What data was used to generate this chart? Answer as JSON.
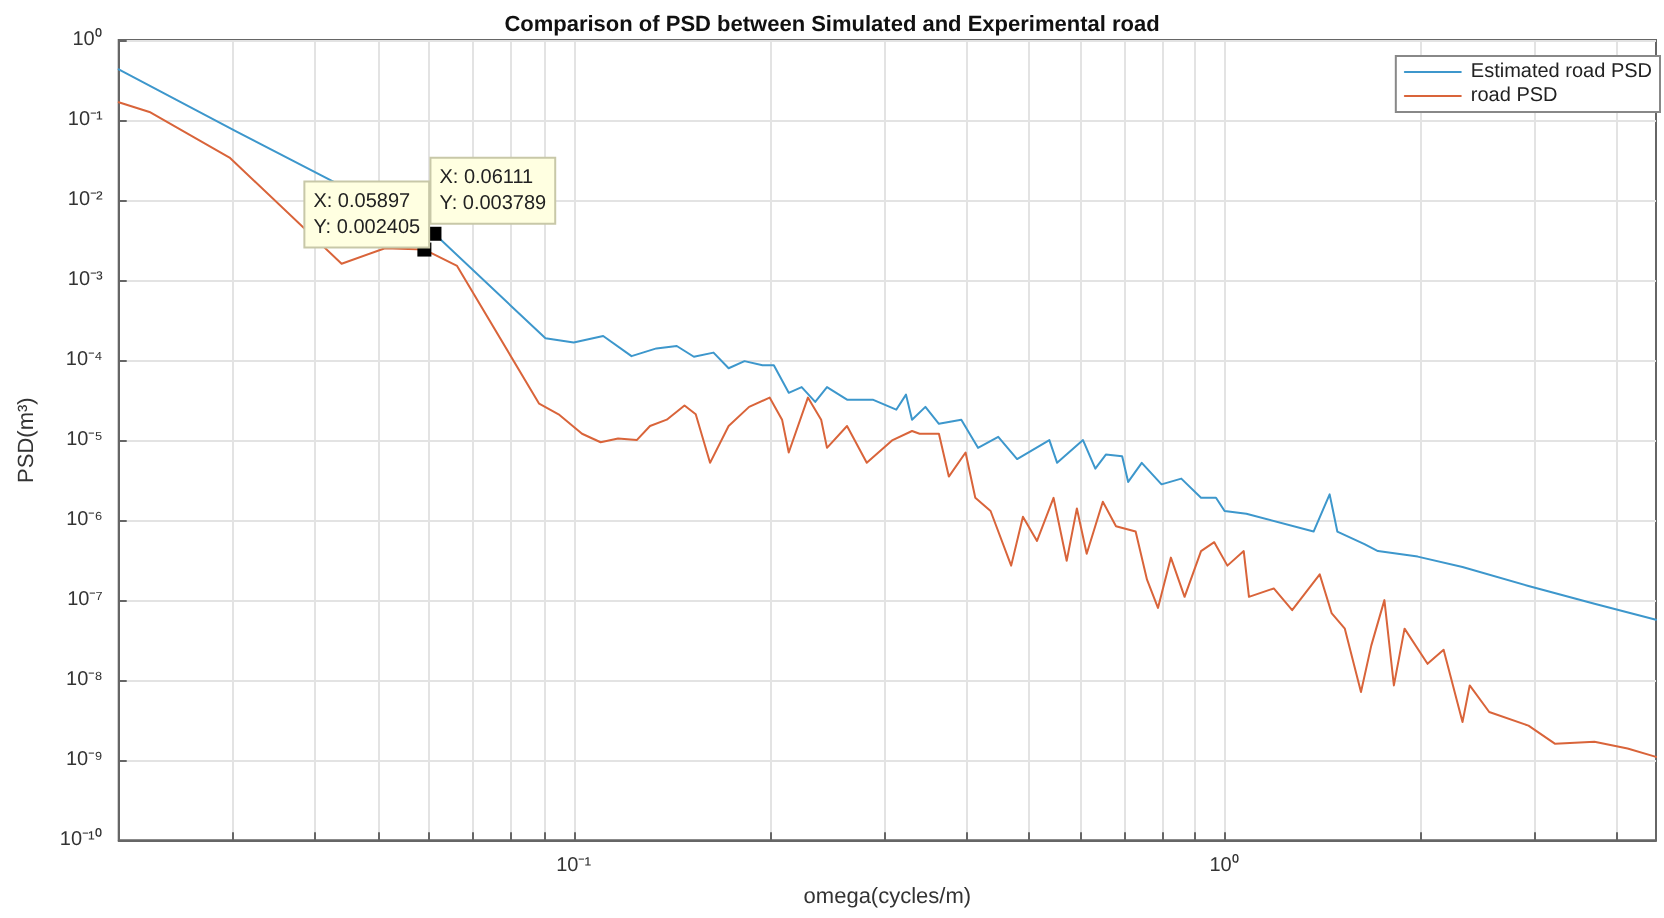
{
  "chart_data": {
    "type": "line",
    "title": "Comparison of PSD between Simulated and Experimental road",
    "xlabel": "omega(cycles/m)",
    "ylabel": "PSD(m³)",
    "log": "xy",
    "grid": true,
    "legend": "top right",
    "marker": "none",
    "line_style": "solid",
    "xlim": [
      0.02,
      4.6
    ],
    "ylim": [
      1e-10,
      1
    ],
    "xticks": [
      {
        "value": 0.02,
        "label": null
      },
      {
        "value": 0.03,
        "label": null
      },
      {
        "value": 0.04,
        "label": null
      },
      {
        "value": 0.05,
        "label": null
      },
      {
        "value": 0.06,
        "label": null
      },
      {
        "value": 0.07,
        "label": null
      },
      {
        "value": 0.08,
        "label": null
      },
      {
        "value": 0.09,
        "label": null
      },
      {
        "value": 0.1,
        "label": "10⁻¹"
      },
      {
        "value": 0.2,
        "label": null
      },
      {
        "value": 0.3,
        "label": null
      },
      {
        "value": 0.4,
        "label": null
      },
      {
        "value": 0.5,
        "label": null
      },
      {
        "value": 0.6,
        "label": null
      },
      {
        "value": 0.7,
        "label": null
      },
      {
        "value": 0.8,
        "label": null
      },
      {
        "value": 0.9,
        "label": null
      },
      {
        "value": 1,
        "label": "10⁰"
      },
      {
        "value": 2,
        "label": null
      },
      {
        "value": 3,
        "label": null
      },
      {
        "value": 4,
        "label": null
      }
    ],
    "yticks": [
      {
        "value": 1e-10,
        "label": "10⁻¹⁰"
      },
      {
        "value": 1e-09,
        "label": "10⁻⁹"
      },
      {
        "value": 1e-08,
        "label": "10⁻⁸"
      },
      {
        "value": 1e-07,
        "label": "10⁻⁷"
      },
      {
        "value": 1e-06,
        "label": "10⁻⁶"
      },
      {
        "value": 1e-05,
        "label": "10⁻⁵"
      },
      {
        "value": 0.0001,
        "label": "10⁻⁴"
      },
      {
        "value": 0.001,
        "label": "10⁻³"
      },
      {
        "value": 0.01,
        "label": "10⁻²"
      },
      {
        "value": 0.1,
        "label": "10⁻¹"
      },
      {
        "value": 1,
        "label": "10⁰"
      }
    ],
    "annotations": [
      {
        "text": "X: 0.05897\nY: 0.002405",
        "x": 0.05897,
        "y": 0.002405
      },
      {
        "text": "X: 0.06111\nY: 0.003789",
        "x": 0.06111,
        "y": 0.003789
      }
    ],
    "series": [
      {
        "name": "Estimated road PSD",
        "color": "#3d97cc",
        "x": [
          0.02,
          0.0304,
          0.06111,
          0.0905,
          0.1,
          0.111,
          0.1227,
          0.134,
          0.144,
          0.153,
          0.164,
          0.173,
          0.183,
          0.195,
          0.203,
          0.214,
          0.224,
          0.235,
          0.245,
          0.263,
          0.288,
          0.313,
          0.324,
          0.331,
          0.347,
          0.364,
          0.394,
          0.418,
          0.449,
          0.48,
          0.538,
          0.553,
          0.606,
          0.633,
          0.657,
          0.696,
          0.711,
          0.746,
          0.8,
          0.858,
          0.92,
          0.97,
          1.0,
          1.08,
          1.37,
          1.45,
          1.49,
          1.64,
          1.72,
          1.98,
          2.32,
          2.93,
          3.7,
          4.6
        ],
        "values": [
          0.43,
          0.071,
          0.003789,
          0.000187,
          0.000166,
          0.0002,
          0.000112,
          0.00014,
          0.00015,
          0.00011,
          0.000124,
          7.9e-05,
          9.7e-05,
          8.6e-05,
          8.6e-05,
          3.9e-05,
          4.6e-05,
          3e-05,
          4.6e-05,
          3.2e-05,
          3.2e-05,
          2.4e-05,
          3.7e-05,
          1.8e-05,
          2.6e-05,
          1.6e-05,
          1.8e-05,
          8e-06,
          1.1e-05,
          5.8e-06,
          1e-05,
          5.2e-06,
          1e-05,
          4.4e-06,
          6.6e-06,
          6.3e-06,
          3e-06,
          5.2e-06,
          2.8e-06,
          3.3e-06,
          1.9e-06,
          1.9e-06,
          1.3e-06,
          1.2e-06,
          7.2e-07,
          2.1e-06,
          7.2e-07,
          5e-07,
          4.1e-07,
          3.5e-07,
          2.6e-07,
          1.5e-07,
          9e-08,
          5.7e-08
        ]
      },
      {
        "name": "road PSD",
        "color": "#d9643a",
        "x": [
          0.02,
          0.0223,
          0.0296,
          0.044,
          0.0513,
          0.05897,
          0.0662,
          0.0885,
          0.0948,
          0.103,
          0.11,
          0.117,
          0.125,
          0.131,
          0.139,
          0.148,
          0.154,
          0.162,
          0.173,
          0.186,
          0.2,
          0.209,
          0.214,
          0.229,
          0.24,
          0.245,
          0.263,
          0.282,
          0.309,
          0.331,
          0.34,
          0.364,
          0.377,
          0.4,
          0.414,
          0.437,
          0.47,
          0.49,
          0.515,
          0.546,
          0.572,
          0.593,
          0.614,
          0.65,
          0.681,
          0.73,
          0.76,
          0.79,
          0.827,
          0.868,
          0.92,
          0.964,
          1.01,
          1.07,
          1.09,
          1.19,
          1.27,
          1.4,
          1.46,
          1.53,
          1.62,
          1.68,
          1.76,
          1.82,
          1.89,
          2.05,
          2.17,
          2.32,
          2.38,
          2.55,
          2.93,
          3.22,
          3.7,
          4.16,
          4.6
        ],
        "values": [
          0.167,
          0.126,
          0.034,
          0.0016,
          0.0025,
          0.002405,
          0.0015,
          2.85e-05,
          2.1e-05,
          1.2e-05,
          9.4e-06,
          1.05e-05,
          1e-05,
          1.5e-05,
          1.8e-05,
          2.7e-05,
          2.1e-05,
          5.2e-06,
          1.5e-05,
          2.6e-05,
          3.4e-05,
          1.8e-05,
          7e-06,
          3.4e-05,
          1.8e-05,
          8e-06,
          1.5e-05,
          5.2e-06,
          1e-05,
          1.3e-05,
          1.2e-05,
          1.2e-05,
          3.5e-06,
          7e-06,
          1.9e-06,
          1.3e-06,
          2.7e-07,
          1.1e-06,
          5.5e-07,
          1.9e-06,
          3.1e-07,
          1.4e-06,
          3.8e-07,
          1.7e-06,
          8.4e-07,
          7.2e-07,
          1.8e-07,
          8e-08,
          3.4e-07,
          1.1e-07,
          4.1e-07,
          5.3e-07,
          2.7e-07,
          4.1e-07,
          1.1e-07,
          1.4e-07,
          7.5e-08,
          2.1e-07,
          6.9e-08,
          4.4e-08,
          7.1e-09,
          2.7e-08,
          1e-07,
          8.6e-09,
          4.4e-08,
          1.6e-08,
          2.4e-08,
          3e-09,
          8.6e-09,
          4e-09,
          2.7e-09,
          1.6e-09,
          1.7e-09,
          1.4e-09,
          1.1e-09
        ]
      }
    ]
  }
}
